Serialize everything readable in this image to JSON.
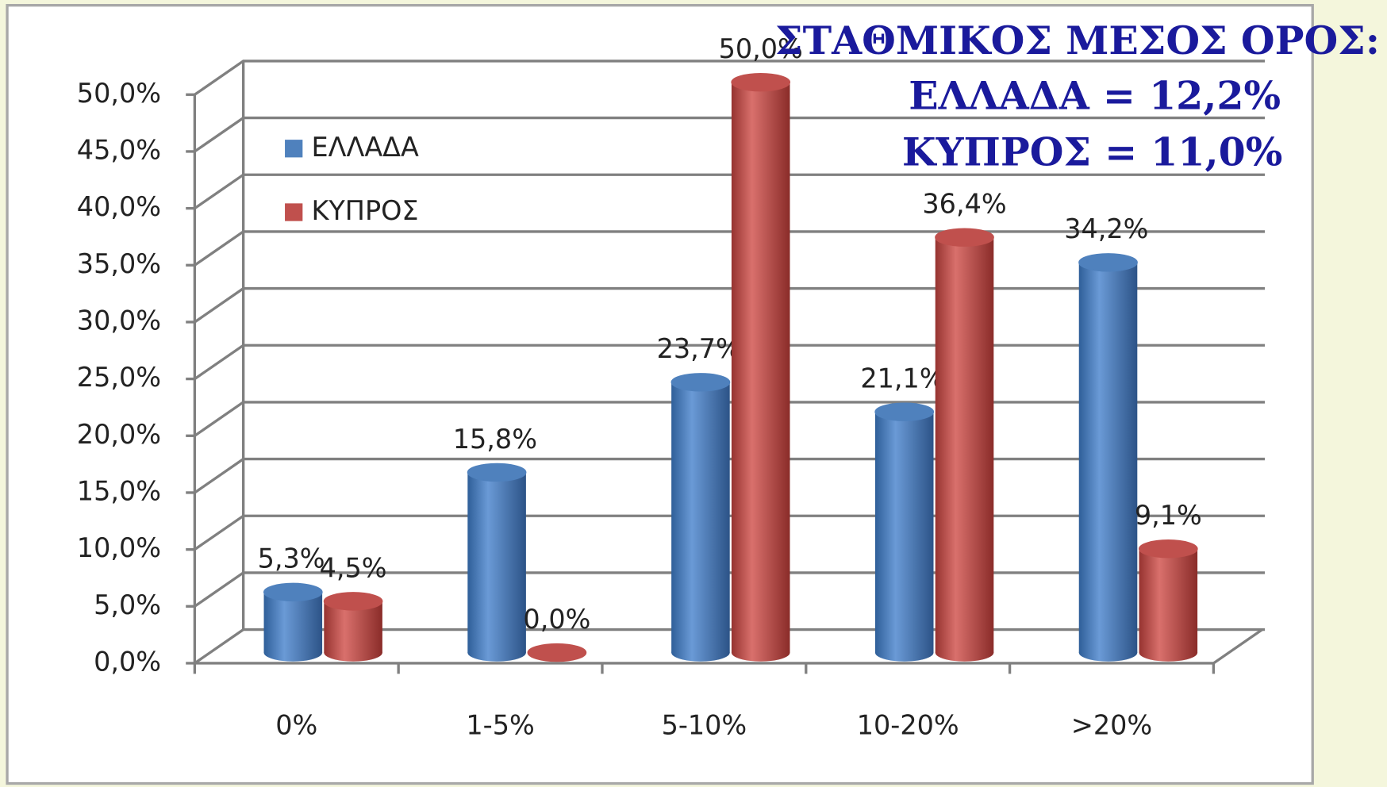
{
  "chart_data": {
    "type": "bar3d",
    "categories": [
      "0%",
      "1-5%",
      "5-10%",
      "10-20%",
      ">20%"
    ],
    "series": [
      {
        "name": "ΕΛΛΑΔΑ",
        "color": "#4f81bd",
        "values": [
          5.3,
          15.8,
          23.7,
          21.1,
          34.2
        ],
        "value_labels": [
          "5,3%",
          "15,8%",
          "23,7%",
          "21,1%",
          "34,2%"
        ]
      },
      {
        "name": "ΚΥΠΡΟΣ",
        "color": "#c0504d",
        "values": [
          4.5,
          0.0,
          50.0,
          36.4,
          9.1
        ],
        "value_labels": [
          "4,5%",
          "0,0%",
          "50,0%",
          "36,4%",
          "9,1%"
        ]
      }
    ],
    "ylim": [
      0,
      50
    ],
    "yticks": [
      {
        "value": 0,
        "label": "0,0%"
      },
      {
        "value": 5,
        "label": "5,0%"
      },
      {
        "value": 10,
        "label": "10,0%"
      },
      {
        "value": 15,
        "label": "15,0%"
      },
      {
        "value": 20,
        "label": "20,0%"
      },
      {
        "value": 25,
        "label": "25,0%"
      },
      {
        "value": 30,
        "label": "30,0%"
      },
      {
        "value": 35,
        "label": "35,0%"
      },
      {
        "value": 40,
        "label": "40,0%"
      },
      {
        "value": 45,
        "label": "45,0%"
      },
      {
        "value": 50,
        "label": "50,0%"
      }
    ],
    "grid": true,
    "legend": "upper left",
    "annotations": [
      "ΣΤΑΘΜΙΚΟΣ ΜΕΣΟΣ ΟΡΟΣ:",
      "ΕΛΛΑΔΑ = 12,2%",
      "ΚΥΠΡΟΣ = 11,0%"
    ]
  }
}
